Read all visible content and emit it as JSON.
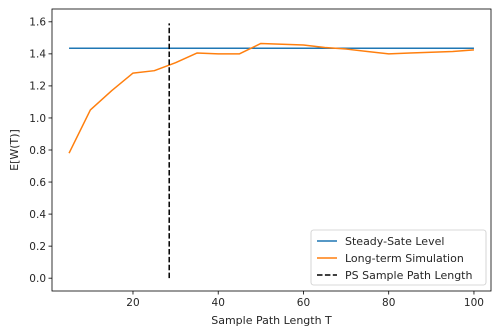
{
  "chart_data": {
    "type": "line",
    "title": "",
    "xlabel": "Sample Path Length T",
    "ylabel": "E[W(T)]",
    "xlim": [
      1,
      104
    ],
    "ylim": [
      -0.08,
      1.68
    ],
    "xticks": [
      20,
      40,
      60,
      80,
      100
    ],
    "yticks": [
      0.0,
      0.2,
      0.4,
      0.6,
      0.8,
      1.0,
      1.2,
      1.4,
      1.6
    ],
    "grid": false,
    "legend_position": "lower-right",
    "series": [
      {
        "name": "Steady-Sate Level",
        "color": "#1f77b4",
        "style": "solid",
        "x": [
          5,
          100
        ],
        "y": [
          1.435,
          1.435
        ]
      },
      {
        "name": "Long-term Simulation",
        "color": "#ff7f0e",
        "style": "solid",
        "x": [
          5,
          10,
          15,
          20,
          25,
          30,
          35,
          40,
          45,
          50,
          55,
          60,
          65,
          70,
          75,
          80,
          85,
          90,
          95,
          100
        ],
        "y": [
          0.78,
          1.05,
          1.17,
          1.28,
          1.295,
          1.345,
          1.405,
          1.4,
          1.4,
          1.465,
          1.46,
          1.455,
          1.44,
          1.43,
          1.415,
          1.4,
          1.405,
          1.41,
          1.415,
          1.425
        ]
      },
      {
        "name": "PS Sample Path Length",
        "color": "#000000",
        "style": "dashed",
        "x": [
          28.5,
          28.5
        ],
        "y": [
          0.0,
          1.59
        ]
      }
    ]
  }
}
